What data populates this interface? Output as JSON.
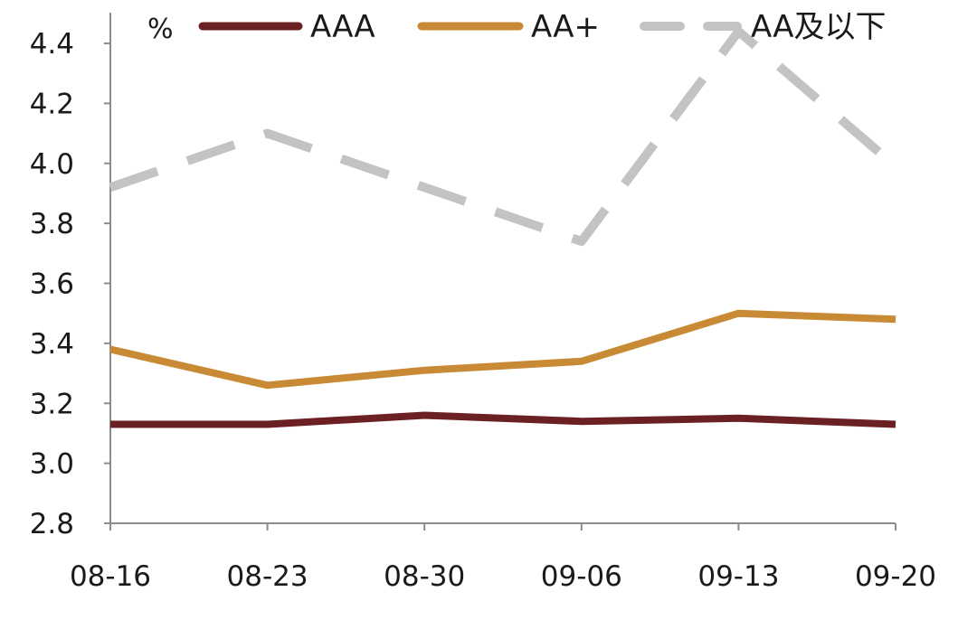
{
  "chart_data": {
    "type": "line",
    "title": "",
    "unit_label": "%",
    "xlabel": "",
    "ylabel": "",
    "categories": [
      "08-16",
      "08-23",
      "08-30",
      "09-06",
      "09-13",
      "09-20"
    ],
    "ylim": [
      2.8,
      4.4
    ],
    "yticks": [
      "2.8",
      "3.0",
      "3.2",
      "3.4",
      "3.6",
      "3.8",
      "4.0",
      "4.2",
      "4.4"
    ],
    "grid": false,
    "legend_position": "top",
    "series": [
      {
        "name": "AAA",
        "color": "#6b2124",
        "dash": "solid",
        "values": [
          3.13,
          3.13,
          3.16,
          3.14,
          3.15,
          3.13
        ]
      },
      {
        "name": "AA+",
        "color": "#c98a35",
        "dash": "solid",
        "values": [
          3.38,
          3.26,
          3.31,
          3.34,
          3.5,
          3.48
        ]
      },
      {
        "name": "AA及以下",
        "color": "#c3c3c3",
        "dash": "dashed",
        "values": [
          3.92,
          4.1,
          3.92,
          3.74,
          4.44,
          3.99
        ]
      }
    ]
  }
}
